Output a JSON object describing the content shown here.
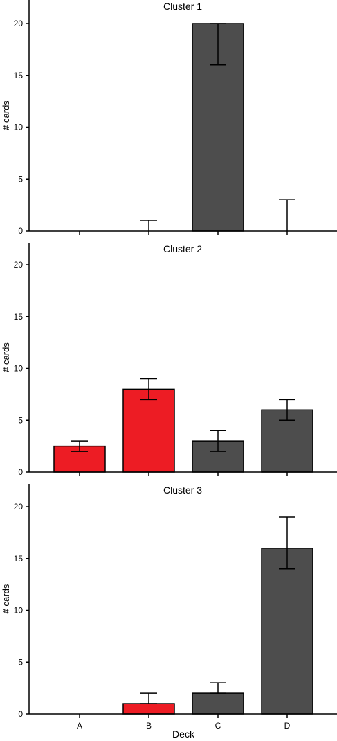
{
  "chart_data": [
    {
      "type": "bar",
      "title": "Cluster 1",
      "ylabel": "# cards",
      "xlabel": "",
      "categories": [
        "A",
        "B",
        "C",
        "D"
      ],
      "ylim": [
        0,
        22
      ],
      "yticks": [
        0,
        5,
        10,
        15,
        20
      ],
      "values": [
        0,
        0,
        20,
        0
      ],
      "error_low": [
        0,
        0,
        16,
        0
      ],
      "error_high": [
        0,
        1,
        20,
        3
      ],
      "bar_colors": [
        "#ed1c24",
        "#ed1c24",
        "#4d4d4d",
        "#4d4d4d"
      ],
      "show_xticklabels": false
    },
    {
      "type": "bar",
      "title": "Cluster 2",
      "ylabel": "# cards",
      "xlabel": "",
      "categories": [
        "A",
        "B",
        "C",
        "D"
      ],
      "ylim": [
        0,
        22
      ],
      "yticks": [
        0,
        5,
        10,
        15,
        20
      ],
      "values": [
        2.5,
        8,
        3,
        6
      ],
      "error_low": [
        2,
        7,
        2,
        5
      ],
      "error_high": [
        3,
        9,
        4,
        7
      ],
      "bar_colors": [
        "#ed1c24",
        "#ed1c24",
        "#4d4d4d",
        "#4d4d4d"
      ],
      "show_xticklabels": false
    },
    {
      "type": "bar",
      "title": "Cluster 3",
      "ylabel": "# cards",
      "xlabel": "Deck",
      "categories": [
        "A",
        "B",
        "C",
        "D"
      ],
      "ylim": [
        0,
        22
      ],
      "yticks": [
        0,
        5,
        10,
        15,
        20
      ],
      "values": [
        0,
        1,
        2,
        16
      ],
      "error_low": [
        0,
        1,
        2,
        14
      ],
      "error_high": [
        0,
        2,
        3,
        19
      ],
      "bar_colors": [
        "#ed1c24",
        "#ed1c24",
        "#4d4d4d",
        "#4d4d4d"
      ],
      "show_xticklabels": true
    }
  ]
}
